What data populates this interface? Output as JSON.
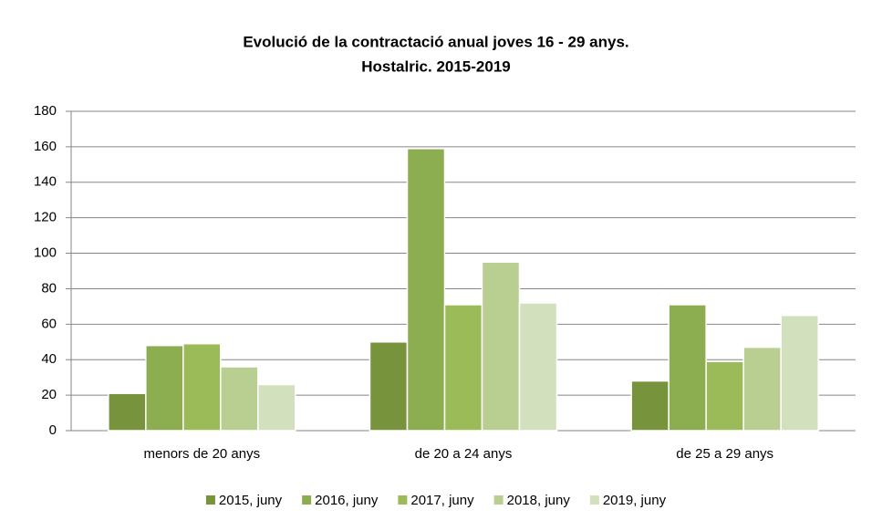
{
  "chart_data": {
    "type": "bar",
    "title": [
      "Evolució de la contractació anual joves 16 - 29 anys.",
      "Hostalric. 2015-2019"
    ],
    "categories": [
      "menors de 20 anys",
      "de 20 a 24 anys",
      "de 25 a 29 anys"
    ],
    "series": [
      {
        "name": "2015, juny",
        "color": "#77933c",
        "values": [
          21,
          50,
          28
        ]
      },
      {
        "name": "2016, juny",
        "color": "#8cad50",
        "values": [
          48,
          159,
          71
        ]
      },
      {
        "name": "2017, juny",
        "color": "#9bbb59",
        "values": [
          49,
          71,
          39
        ]
      },
      {
        "name": "2018, juny",
        "color": "#b9cf91",
        "values": [
          36,
          95,
          47
        ]
      },
      {
        "name": "2019, juny",
        "color": "#d3e0bd",
        "values": [
          26,
          72,
          65
        ]
      }
    ],
    "ylim": [
      0,
      180
    ],
    "yticks": [
      0,
      20,
      40,
      60,
      80,
      100,
      120,
      140,
      160,
      180
    ],
    "grid": true,
    "legend": "bottom"
  }
}
